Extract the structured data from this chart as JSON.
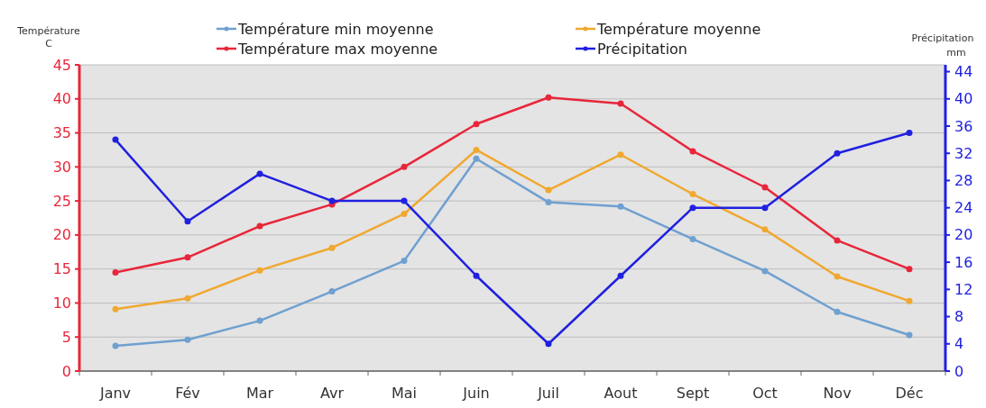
{
  "chart_data": {
    "type": "line",
    "ylabel": "Température C",
    "y2label": "Précipitation mm",
    "categories": [
      "Janv",
      "Fév",
      "Mar",
      "Avr",
      "Mai",
      "Juin",
      "Juil",
      "Aout",
      "Sept",
      "Oct",
      "Nov",
      "Déc"
    ],
    "series": [
      {
        "name": "Température min moyenne",
        "color": "#6fa0d0",
        "values": [
          3.7,
          4.6,
          7.4,
          11.7,
          16.2,
          31.2,
          24.8,
          24.2,
          19.4,
          14.7,
          8.7,
          5.3
        ]
      },
      {
        "name": "Température max moyenne",
        "color": "#e8263a",
        "values": [
          14.5,
          16.7,
          21.3,
          24.5,
          30.0,
          36.3,
          40.2,
          39.3,
          32.3,
          27.0,
          19.2,
          15.0
        ]
      },
      {
        "name": "Température moyenne",
        "color": "#f0a830",
        "values": [
          9.1,
          10.7,
          14.8,
          18.1,
          23.1,
          32.5,
          26.6,
          31.8,
          26.0,
          20.8,
          13.9,
          10.3
        ]
      },
      {
        "name": "Précipitation",
        "color": "#2020e0",
        "axis": "y2",
        "values": [
          34,
          22,
          29,
          25,
          25,
          14,
          4,
          14,
          24,
          24,
          32,
          35
        ]
      }
    ],
    "ylim": [
      0,
      45
    ],
    "yticks": [
      0,
      5,
      10,
      15,
      20,
      25,
      30,
      35,
      40,
      45
    ],
    "y2lim": [
      0,
      45
    ],
    "y2ticks": [
      0,
      4,
      8,
      12,
      16,
      20,
      24,
      28,
      32,
      36,
      40,
      44
    ],
    "grid": "y",
    "legend": "top",
    "marker": "circle",
    "line_style": "solid"
  }
}
